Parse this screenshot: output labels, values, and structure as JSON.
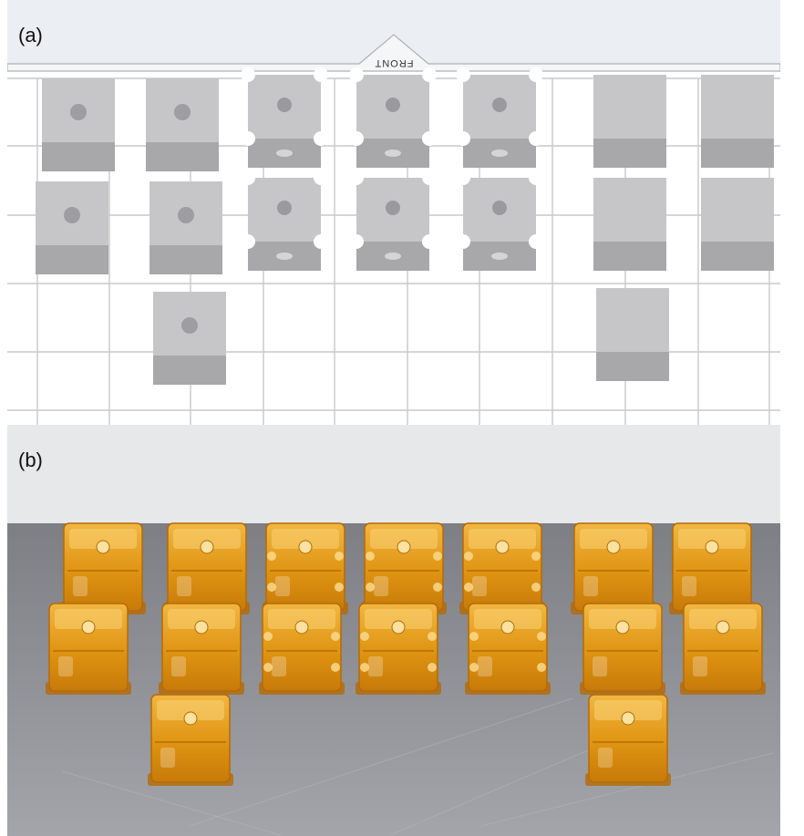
{
  "panel_a": {
    "label": "(a)",
    "front_label": "FRONT",
    "colors": {
      "plate_top": "#ebeef2",
      "grid": "#c9c9c9",
      "part_top": "#c6c6c9",
      "part_side": "#a8a8ab"
    },
    "columns": [
      {
        "name": "plain-cube-with-hole",
        "count": 2
      },
      {
        "name": "plain-cube-with-hole",
        "count": 3
      },
      {
        "name": "notched-cube-with-holes",
        "count": 2
      },
      {
        "name": "notched-cube-with-holes",
        "count": 2
      },
      {
        "name": "notched-cube-with-holes",
        "count": 2
      },
      {
        "name": "solid-cube",
        "count": 3
      },
      {
        "name": "solid-cube",
        "count": 2
      }
    ]
  },
  "panel_b": {
    "label": "(b)",
    "colors": {
      "background_wall": "#e7e8ea",
      "table": "#8f9196",
      "resin": "#e8a01c",
      "resin_dark": "#b56a06"
    }
  }
}
